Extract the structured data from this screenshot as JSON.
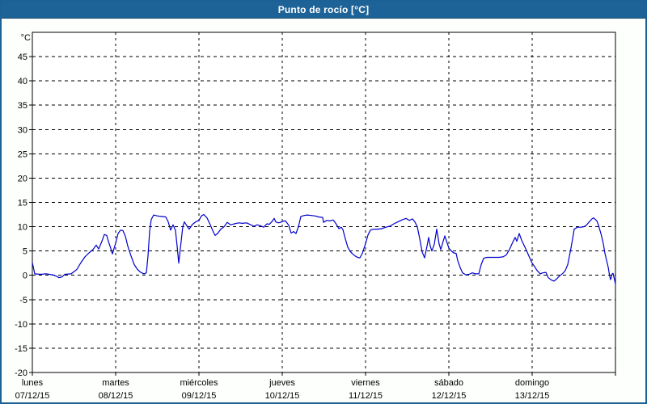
{
  "window": {
    "title": "Punto de rocío [°C]"
  },
  "colors": {
    "titlebar_bg": "#1e6397",
    "titlebar_text": "#ffffff",
    "window_border": "#1c6195",
    "plot_frame": "#000000",
    "grid": "#000000",
    "axis_text": "#000000",
    "series_line": "#0000cc",
    "plot_bg": "#ffffff",
    "page_bg": "#fdfffd"
  },
  "chart_data": {
    "type": "line",
    "title": "Punto de rocío [°C]",
    "ylabel": "°C",
    "xlabel": "",
    "ylim": [
      -20,
      50
    ],
    "yticks": [
      45,
      40,
      35,
      30,
      25,
      20,
      15,
      10,
      5,
      0,
      -5,
      -10,
      -15,
      -20
    ],
    "grid": "dashed",
    "legend": "none",
    "x_range_days": [
      0,
      7
    ],
    "x_categories": [
      {
        "name": "lunes",
        "date": "07/12/15"
      },
      {
        "name": "martes",
        "date": "08/12/15"
      },
      {
        "name": "miércoles",
        "date": "09/12/15"
      },
      {
        "name": "jueves",
        "date": "10/12/15"
      },
      {
        "name": "viernes",
        "date": "11/12/15"
      },
      {
        "name": "sábado",
        "date": "12/12/15"
      },
      {
        "name": "domingo",
        "date": "13/12/15"
      }
    ],
    "series": [
      {
        "name": "Punto de rocío",
        "color": "#0000cc",
        "unit": "°C",
        "points_day_value": [
          [
            0.0,
            2.6
          ],
          [
            0.029,
            0.3
          ],
          [
            0.097,
            0.2
          ],
          [
            0.165,
            0.3
          ],
          [
            0.243,
            0.1
          ],
          [
            0.291,
            -0.2
          ],
          [
            0.32,
            -0.5
          ],
          [
            0.359,
            -0.3
          ],
          [
            0.388,
            0.2
          ],
          [
            0.466,
            0.3
          ],
          [
            0.534,
            1.2
          ],
          [
            0.583,
            2.6
          ],
          [
            0.631,
            3.8
          ],
          [
            0.68,
            4.6
          ],
          [
            0.728,
            5.3
          ],
          [
            0.767,
            6.2
          ],
          [
            0.796,
            5.4
          ],
          [
            0.835,
            7.0
          ],
          [
            0.864,
            8.4
          ],
          [
            0.893,
            8.2
          ],
          [
            0.913,
            7.0
          ],
          [
            0.942,
            5.5
          ],
          [
            0.961,
            4.4
          ],
          [
            0.981,
            5.5
          ],
          [
            1.0,
            6.6
          ],
          [
            1.029,
            8.6
          ],
          [
            1.058,
            9.3
          ],
          [
            1.087,
            9.2
          ],
          [
            1.117,
            8.0
          ],
          [
            1.146,
            6.0
          ],
          [
            1.184,
            4.0
          ],
          [
            1.223,
            2.2
          ],
          [
            1.262,
            1.2
          ],
          [
            1.301,
            0.6
          ],
          [
            1.34,
            0.3
          ],
          [
            1.369,
            0.5
          ],
          [
            1.388,
            4.0
          ],
          [
            1.408,
            9.0
          ],
          [
            1.427,
            11.5
          ],
          [
            1.456,
            12.4
          ],
          [
            1.505,
            12.2
          ],
          [
            1.553,
            12.1
          ],
          [
            1.602,
            12.0
          ],
          [
            1.631,
            11.0
          ],
          [
            1.66,
            9.3
          ],
          [
            1.689,
            10.4
          ],
          [
            1.718,
            9.2
          ],
          [
            1.738,
            6.0
          ],
          [
            1.757,
            2.5
          ],
          [
            1.777,
            5.5
          ],
          [
            1.806,
            10.0
          ],
          [
            1.825,
            11.0
          ],
          [
            1.854,
            10.2
          ],
          [
            1.883,
            9.5
          ],
          [
            1.922,
            10.5
          ],
          [
            1.961,
            11.0
          ],
          [
            2.0,
            11.3
          ],
          [
            2.029,
            12.2
          ],
          [
            2.058,
            12.5
          ],
          [
            2.097,
            11.8
          ],
          [
            2.136,
            10.4
          ],
          [
            2.165,
            9.2
          ],
          [
            2.194,
            8.2
          ],
          [
            2.223,
            8.6
          ],
          [
            2.262,
            9.5
          ],
          [
            2.301,
            10.0
          ],
          [
            2.34,
            10.9
          ],
          [
            2.379,
            10.4
          ],
          [
            2.427,
            10.6
          ],
          [
            2.476,
            10.8
          ],
          [
            2.524,
            10.7
          ],
          [
            2.573,
            10.8
          ],
          [
            2.621,
            10.4
          ],
          [
            2.66,
            10.1
          ],
          [
            2.699,
            10.4
          ],
          [
            2.738,
            10.2
          ],
          [
            2.777,
            9.9
          ],
          [
            2.816,
            10.6
          ],
          [
            2.845,
            10.5
          ],
          [
            2.874,
            11.0
          ],
          [
            2.903,
            11.7
          ],
          [
            2.922,
            11.0
          ],
          [
            2.951,
            10.8
          ],
          [
            2.981,
            10.9
          ],
          [
            3.0,
            11.1
          ],
          [
            3.039,
            11.2
          ],
          [
            3.078,
            10.3
          ],
          [
            3.107,
            8.7
          ],
          [
            3.136,
            9.0
          ],
          [
            3.165,
            8.6
          ],
          [
            3.194,
            10.0
          ],
          [
            3.223,
            12.1
          ],
          [
            3.262,
            12.3
          ],
          [
            3.301,
            12.4
          ],
          [
            3.35,
            12.3
          ],
          [
            3.398,
            12.2
          ],
          [
            3.437,
            12.0
          ],
          [
            3.485,
            11.9
          ],
          [
            3.495,
            10.9
          ],
          [
            3.534,
            11.3
          ],
          [
            3.573,
            11.2
          ],
          [
            3.612,
            11.4
          ],
          [
            3.65,
            10.5
          ],
          [
            3.68,
            9.6
          ],
          [
            3.709,
            9.9
          ],
          [
            3.728,
            9.4
          ],
          [
            3.757,
            7.5
          ],
          [
            3.786,
            5.8
          ],
          [
            3.816,
            4.9
          ],
          [
            3.845,
            4.4
          ],
          [
            3.874,
            4.0
          ],
          [
            3.903,
            3.7
          ],
          [
            3.932,
            3.6
          ],
          [
            3.961,
            4.5
          ],
          [
            3.981,
            5.5
          ],
          [
            4.0,
            6.5
          ],
          [
            4.029,
            8.3
          ],
          [
            4.058,
            9.3
          ],
          [
            4.097,
            9.5
          ],
          [
            4.146,
            9.5
          ],
          [
            4.194,
            9.6
          ],
          [
            4.243,
            9.9
          ],
          [
            4.291,
            10.1
          ],
          [
            4.34,
            10.6
          ],
          [
            4.388,
            11.0
          ],
          [
            4.437,
            11.4
          ],
          [
            4.485,
            11.7
          ],
          [
            4.524,
            11.3
          ],
          [
            4.563,
            11.6
          ],
          [
            4.592,
            11.0
          ],
          [
            4.621,
            10.0
          ],
          [
            4.65,
            7.5
          ],
          [
            4.68,
            4.8
          ],
          [
            4.709,
            3.6
          ],
          [
            4.738,
            6.0
          ],
          [
            4.757,
            7.8
          ],
          [
            4.777,
            6.0
          ],
          [
            4.796,
            5.0
          ],
          [
            4.825,
            6.4
          ],
          [
            4.854,
            9.5
          ],
          [
            4.883,
            6.5
          ],
          [
            4.903,
            5.3
          ],
          [
            4.932,
            7.0
          ],
          [
            4.951,
            8.1
          ],
          [
            5.0,
            5.6
          ],
          [
            5.029,
            5.0
          ],
          [
            5.058,
            4.6
          ],
          [
            5.087,
            4.5
          ],
          [
            5.107,
            3.0
          ],
          [
            5.136,
            1.6
          ],
          [
            5.165,
            0.5
          ],
          [
            5.204,
            0.1
          ],
          [
            5.243,
            0.2
          ],
          [
            5.282,
            0.5
          ],
          [
            5.32,
            0.3
          ],
          [
            5.359,
            0.3
          ],
          [
            5.388,
            2.2
          ],
          [
            5.417,
            3.5
          ],
          [
            5.456,
            3.7
          ],
          [
            5.505,
            3.7
          ],
          [
            5.553,
            3.7
          ],
          [
            5.602,
            3.7
          ],
          [
            5.65,
            3.8
          ],
          [
            5.689,
            4.2
          ],
          [
            5.728,
            5.3
          ],
          [
            5.767,
            6.8
          ],
          [
            5.796,
            7.8
          ],
          [
            5.816,
            7.0
          ],
          [
            5.845,
            8.6
          ],
          [
            5.874,
            7.2
          ],
          [
            5.913,
            5.8
          ],
          [
            5.942,
            4.7
          ],
          [
            5.971,
            3.6
          ],
          [
            6.0,
            2.5
          ],
          [
            6.029,
            1.8
          ],
          [
            6.058,
            1.0
          ],
          [
            6.097,
            0.3
          ],
          [
            6.126,
            0.5
          ],
          [
            6.165,
            0.6
          ],
          [
            6.194,
            -0.5
          ],
          [
            6.233,
            -1.0
          ],
          [
            6.262,
            -1.2
          ],
          [
            6.291,
            -0.8
          ],
          [
            6.33,
            -0.1
          ],
          [
            6.369,
            0.4
          ],
          [
            6.398,
            1.0
          ],
          [
            6.427,
            2.2
          ],
          [
            6.447,
            3.9
          ],
          [
            6.466,
            5.6
          ],
          [
            6.485,
            7.5
          ],
          [
            6.505,
            9.5
          ],
          [
            6.544,
            9.9
          ],
          [
            6.583,
            9.9
          ],
          [
            6.621,
            10.0
          ],
          [
            6.65,
            10.3
          ],
          [
            6.68,
            10.9
          ],
          [
            6.718,
            11.6
          ],
          [
            6.738,
            11.8
          ],
          [
            6.777,
            11.2
          ],
          [
            6.796,
            10.3
          ],
          [
            6.825,
            8.6
          ],
          [
            6.854,
            6.5
          ],
          [
            6.874,
            4.5
          ],
          [
            6.893,
            3.1
          ],
          [
            6.913,
            1.7
          ],
          [
            6.932,
            -0.3
          ],
          [
            6.942,
            -0.9
          ],
          [
            6.961,
            0.3
          ],
          [
            6.971,
            0.4
          ],
          [
            6.99,
            -1.0
          ],
          [
            7.0,
            -1.8
          ]
        ]
      }
    ]
  }
}
